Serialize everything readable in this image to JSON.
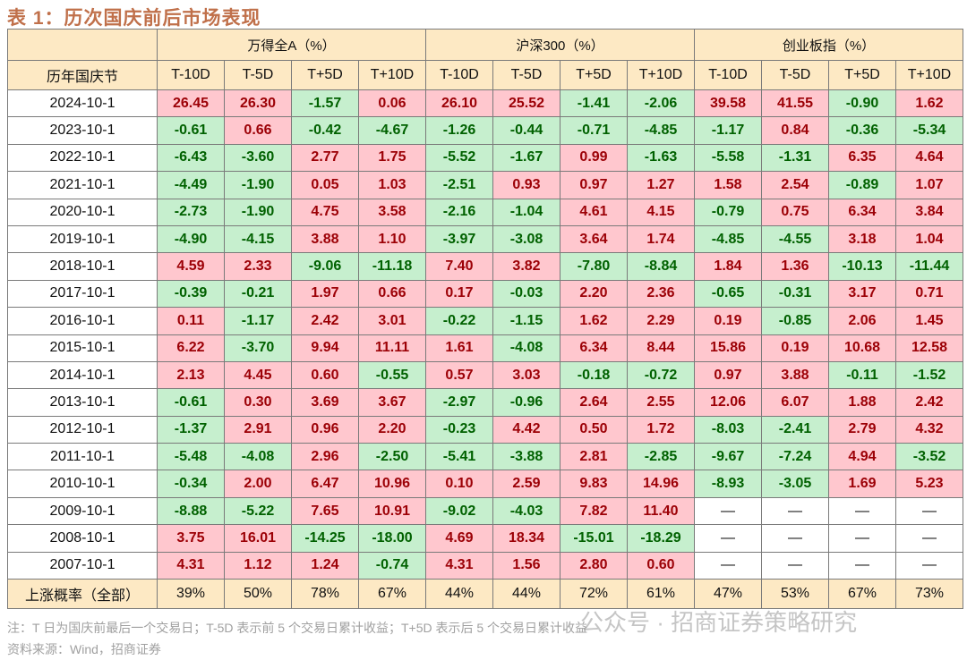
{
  "title": "表 1：历次国庆前后市场表现",
  "groups": [
    "万得全A（%）",
    "沪深300（%）",
    "创业板指（%）"
  ],
  "row_header": "历年国庆节",
  "sub_headers": [
    "T-10D",
    "T-5D",
    "T+5D",
    "T+10D"
  ],
  "rows": [
    {
      "date": "2024-10-1",
      "values": [
        "26.45",
        "26.30",
        "-1.57",
        "0.06",
        "26.10",
        "25.52",
        "-1.41",
        "-2.06",
        "39.58",
        "41.55",
        "-0.90",
        "1.62"
      ]
    },
    {
      "date": "2023-10-1",
      "values": [
        "-0.61",
        "0.66",
        "-0.42",
        "-4.67",
        "-1.26",
        "-0.44",
        "-0.71",
        "-4.85",
        "-1.17",
        "0.84",
        "-0.36",
        "-5.34"
      ]
    },
    {
      "date": "2022-10-1",
      "values": [
        "-6.43",
        "-3.60",
        "2.77",
        "1.75",
        "-5.52",
        "-1.67",
        "0.99",
        "-1.63",
        "-5.58",
        "-1.31",
        "6.35",
        "4.64"
      ]
    },
    {
      "date": "2021-10-1",
      "values": [
        "-4.49",
        "-1.90",
        "0.05",
        "1.03",
        "-2.51",
        "0.93",
        "0.97",
        "1.27",
        "1.58",
        "2.54",
        "-0.89",
        "1.07"
      ]
    },
    {
      "date": "2020-10-1",
      "values": [
        "-2.73",
        "-1.90",
        "4.75",
        "3.58",
        "-2.16",
        "-1.04",
        "4.61",
        "4.15",
        "-0.79",
        "0.75",
        "6.34",
        "3.84"
      ]
    },
    {
      "date": "2019-10-1",
      "values": [
        "-4.90",
        "-4.15",
        "3.88",
        "1.10",
        "-3.97",
        "-3.08",
        "3.64",
        "1.74",
        "-4.85",
        "-4.55",
        "3.18",
        "1.04"
      ]
    },
    {
      "date": "2018-10-1",
      "values": [
        "4.59",
        "2.33",
        "-9.06",
        "-11.18",
        "7.40",
        "3.82",
        "-7.80",
        "-8.84",
        "1.84",
        "1.36",
        "-10.13",
        "-11.44"
      ]
    },
    {
      "date": "2017-10-1",
      "values": [
        "-0.39",
        "-0.21",
        "1.97",
        "0.66",
        "0.17",
        "-0.03",
        "2.20",
        "2.36",
        "-0.65",
        "-0.31",
        "3.17",
        "0.71"
      ]
    },
    {
      "date": "2016-10-1",
      "values": [
        "0.11",
        "-1.17",
        "2.42",
        "3.01",
        "-0.22",
        "-1.15",
        "1.62",
        "2.29",
        "0.19",
        "-0.85",
        "2.06",
        "1.45"
      ]
    },
    {
      "date": "2015-10-1",
      "values": [
        "6.22",
        "-3.70",
        "9.94",
        "11.11",
        "1.61",
        "-4.08",
        "6.34",
        "8.44",
        "15.86",
        "0.19",
        "10.68",
        "12.58"
      ]
    },
    {
      "date": "2014-10-1",
      "values": [
        "2.13",
        "4.45",
        "0.60",
        "-0.55",
        "0.57",
        "3.03",
        "-0.18",
        "-0.72",
        "0.97",
        "3.88",
        "-0.11",
        "-1.52"
      ]
    },
    {
      "date": "2013-10-1",
      "values": [
        "-0.61",
        "0.30",
        "3.69",
        "3.67",
        "-2.97",
        "-0.96",
        "2.64",
        "2.55",
        "12.06",
        "6.07",
        "1.88",
        "2.42"
      ]
    },
    {
      "date": "2012-10-1",
      "values": [
        "-1.37",
        "2.91",
        "0.96",
        "2.20",
        "-0.23",
        "4.42",
        "0.50",
        "1.72",
        "-8.03",
        "-2.41",
        "2.79",
        "4.32"
      ]
    },
    {
      "date": "2011-10-1",
      "values": [
        "-5.48",
        "-4.08",
        "2.96",
        "-2.50",
        "-5.41",
        "-3.88",
        "2.81",
        "-2.85",
        "-9.67",
        "-7.24",
        "4.94",
        "-3.52"
      ]
    },
    {
      "date": "2010-10-1",
      "values": [
        "-0.34",
        "2.00",
        "6.47",
        "10.96",
        "0.10",
        "2.59",
        "9.83",
        "14.96",
        "-8.93",
        "-3.05",
        "1.69",
        "5.23"
      ]
    },
    {
      "date": "2009-10-1",
      "values": [
        "-8.88",
        "-5.22",
        "7.65",
        "10.91",
        "-9.02",
        "-4.03",
        "7.82",
        "11.40",
        "—",
        "—",
        "—",
        "—"
      ]
    },
    {
      "date": "2008-10-1",
      "values": [
        "3.75",
        "16.01",
        "-14.25",
        "-18.00",
        "4.69",
        "18.34",
        "-15.01",
        "-18.29",
        "—",
        "—",
        "—",
        "—"
      ]
    },
    {
      "date": "2007-10-1",
      "values": [
        "4.31",
        "1.12",
        "1.24",
        "-0.74",
        "4.31",
        "1.56",
        "2.80",
        "0.60",
        "—",
        "—",
        "—",
        "—"
      ]
    }
  ],
  "footer": {
    "label": "上涨概率（全部）",
    "values": [
      "39%",
      "50%",
      "78%",
      "67%",
      "44%",
      "44%",
      "72%",
      "61%",
      "47%",
      "53%",
      "67%",
      "73%"
    ]
  },
  "note": "注：T 日为国庆前最后一个交易日；T-5D 表示前 5 个交易日累计收益；T+5D 表示后 5 个交易日累计收益",
  "source": "资料来源：Wind，招商证券",
  "watermark": "公众号 · 招商证券策略研究",
  "colors": {
    "pos_bg": "#ffc7ce",
    "pos_text": "#9c0006",
    "neg_bg": "#c6efce",
    "neg_text": "#006100",
    "header_bg": "#fde9c4"
  }
}
